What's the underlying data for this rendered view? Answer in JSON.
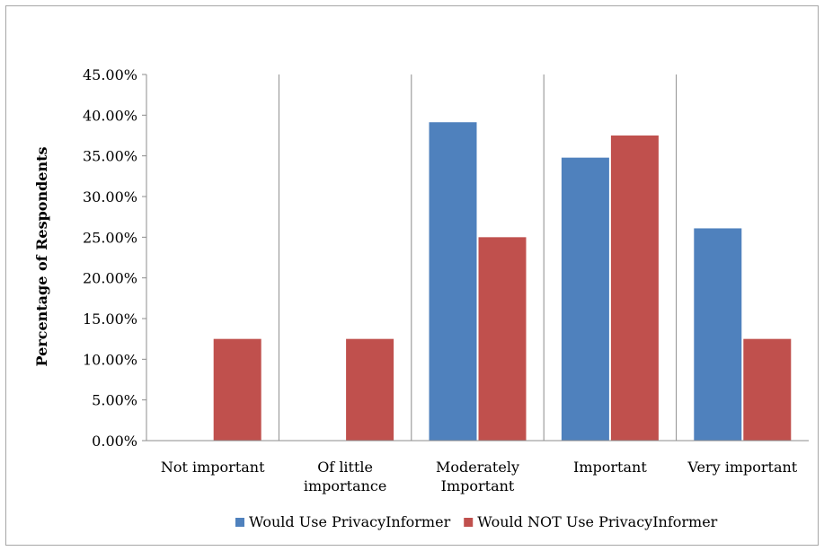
{
  "chart_data": {
    "type": "bar",
    "ylabel": "Percentage of Respondents",
    "xlabel": "",
    "title": "",
    "categories": [
      [
        "Not important"
      ],
      [
        "Of little",
        "importance"
      ],
      [
        "Moderately",
        "Important"
      ],
      [
        "Important"
      ],
      [
        "Very important"
      ]
    ],
    "series": [
      {
        "name": "Would Use PrivacyInformer",
        "color": "#4f81bd",
        "values": [
          0,
          0,
          39.13,
          34.78,
          26.09
        ]
      },
      {
        "name": "Would NOT Use PrivacyInformer",
        "color": "#c0504d",
        "values": [
          12.5,
          12.5,
          25.0,
          37.5,
          12.5
        ]
      }
    ],
    "ylim": [
      0,
      45
    ],
    "yticks": [
      "0.00%",
      "5.00%",
      "10.00%",
      "15.00%",
      "20.00%",
      "25.00%",
      "30.00%",
      "35.00%",
      "40.00%",
      "45.00%"
    ],
    "ystep": 5,
    "legend_position": "bottom",
    "grid": "vertical category separators"
  }
}
